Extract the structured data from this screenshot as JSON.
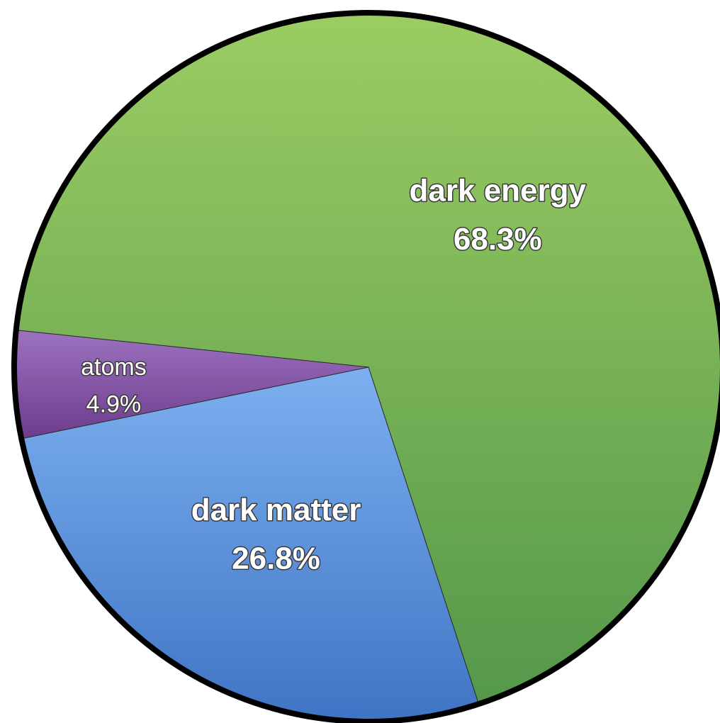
{
  "chart_data": {
    "type": "pie",
    "slices": [
      {
        "label": "dark energy",
        "value": 68.3,
        "value_label": "68.3%",
        "color": "#6aad4f"
      },
      {
        "label": "dark matter",
        "value": 26.8,
        "value_label": "26.8%",
        "color": "#4f86cf"
      },
      {
        "label": "atoms",
        "value": 4.9,
        "value_label": "4.9%",
        "color": "#8a5aa8"
      }
    ],
    "title": "",
    "legend": "none"
  }
}
